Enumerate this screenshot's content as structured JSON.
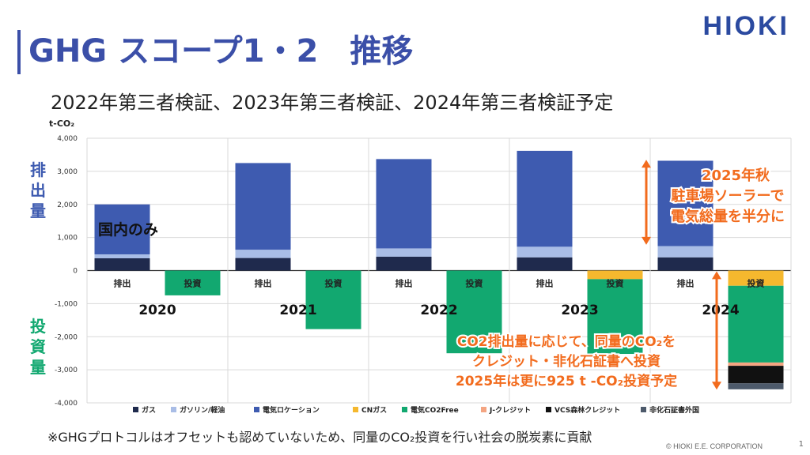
{
  "header": {
    "title": "GHG スコープ1・2　推移",
    "subtitle": "2022年第三者検証、2023年第三者検証、2024年第三者検証予定",
    "logo": "HIOKI"
  },
  "footer": {
    "note": "※GHGプロトコルはオフセットも認めていないため、同量のCO₂投資を行い社会の脱炭素に貢献",
    "copyright": "© HIOKI E.E. CORPORATION",
    "page": "1"
  },
  "chart_data": {
    "type": "bar",
    "stacked": true,
    "unit": "t-CO₂",
    "ylim": [
      -4000,
      4000
    ],
    "yticks": [
      "4,000",
      "3,000",
      "2,000",
      "1,000",
      "0",
      "-1,000",
      "-2,000",
      "-3,000",
      "-4,000"
    ],
    "ytick_values": [
      4000,
      3000,
      2000,
      1000,
      0,
      -1000,
      -2000,
      -3000,
      -4000
    ],
    "years": [
      "2020",
      "2021",
      "2022",
      "2023",
      "2024"
    ],
    "bar_labels": {
      "emission": "排出",
      "investment": "投資"
    },
    "side_labels": {
      "emission": "排出量",
      "investment": "投資量"
    },
    "series": [
      {
        "name": "ガス",
        "color": "#1f2a4d"
      },
      {
        "name": "ガソリン/軽油",
        "color": "#a9bde6"
      },
      {
        "name": "電気ロケーション",
        "color": "#3e5bb0"
      },
      {
        "name": "CNガス",
        "color": "#f5b82e"
      },
      {
        "name": "電気CO2Free",
        "color": "#12a870"
      },
      {
        "name": "J-クレジット",
        "color": "#f4a582"
      },
      {
        "name": "VCS森林クレジット",
        "color": "#111111"
      },
      {
        "name": "非化石証書外国",
        "color": "#4d5a6b"
      }
    ],
    "emissions": [
      {
        "year": "2020",
        "values": {
          "ガス": 370,
          "ガソリン/軽油": 120,
          "電気ロケーション": 1510
        }
      },
      {
        "year": "2021",
        "values": {
          "ガス": 380,
          "ガソリン/軽油": 250,
          "電気ロケーション": 2620
        }
      },
      {
        "year": "2022",
        "values": {
          "ガス": 420,
          "ガソリン/軽油": 250,
          "電気ロケーション": 2700
        }
      },
      {
        "year": "2023",
        "values": {
          "ガス": 400,
          "ガソリン/軽油": 320,
          "電気ロケーション": 2900
        }
      },
      {
        "year": "2024",
        "values": {
          "ガス": 400,
          "ガソリン/軽油": 340,
          "電気ロケーション": 2580
        }
      }
    ],
    "investments": [
      {
        "year": "2020",
        "values": {
          "電気CO2Free": -750
        }
      },
      {
        "year": "2021",
        "values": {
          "電気CO2Free": -1770
        }
      },
      {
        "year": "2022",
        "values": {
          "電気CO2Free": -2500
        }
      },
      {
        "year": "2023",
        "values": {
          "CNガス": -260,
          "電気CO2Free": -2260
        }
      },
      {
        "year": "2024",
        "values": {
          "CNガス": -460,
          "電気CO2Free": -2320,
          "J-クレジット": -100,
          "VCS森林クレジット": -530,
          "非化石証書外国": -180
        }
      }
    ],
    "annotations": {
      "domestic": "国内のみ",
      "solar": [
        "2025年秋",
        "駐車場ソーラーで",
        "電気総量を半分に"
      ],
      "invest": [
        "CO2排出量に応じて、同量のCO₂を",
        "クレジット・非化石証書へ投資",
        "2025年は更に925 t -CO₂投資予定"
      ]
    }
  }
}
